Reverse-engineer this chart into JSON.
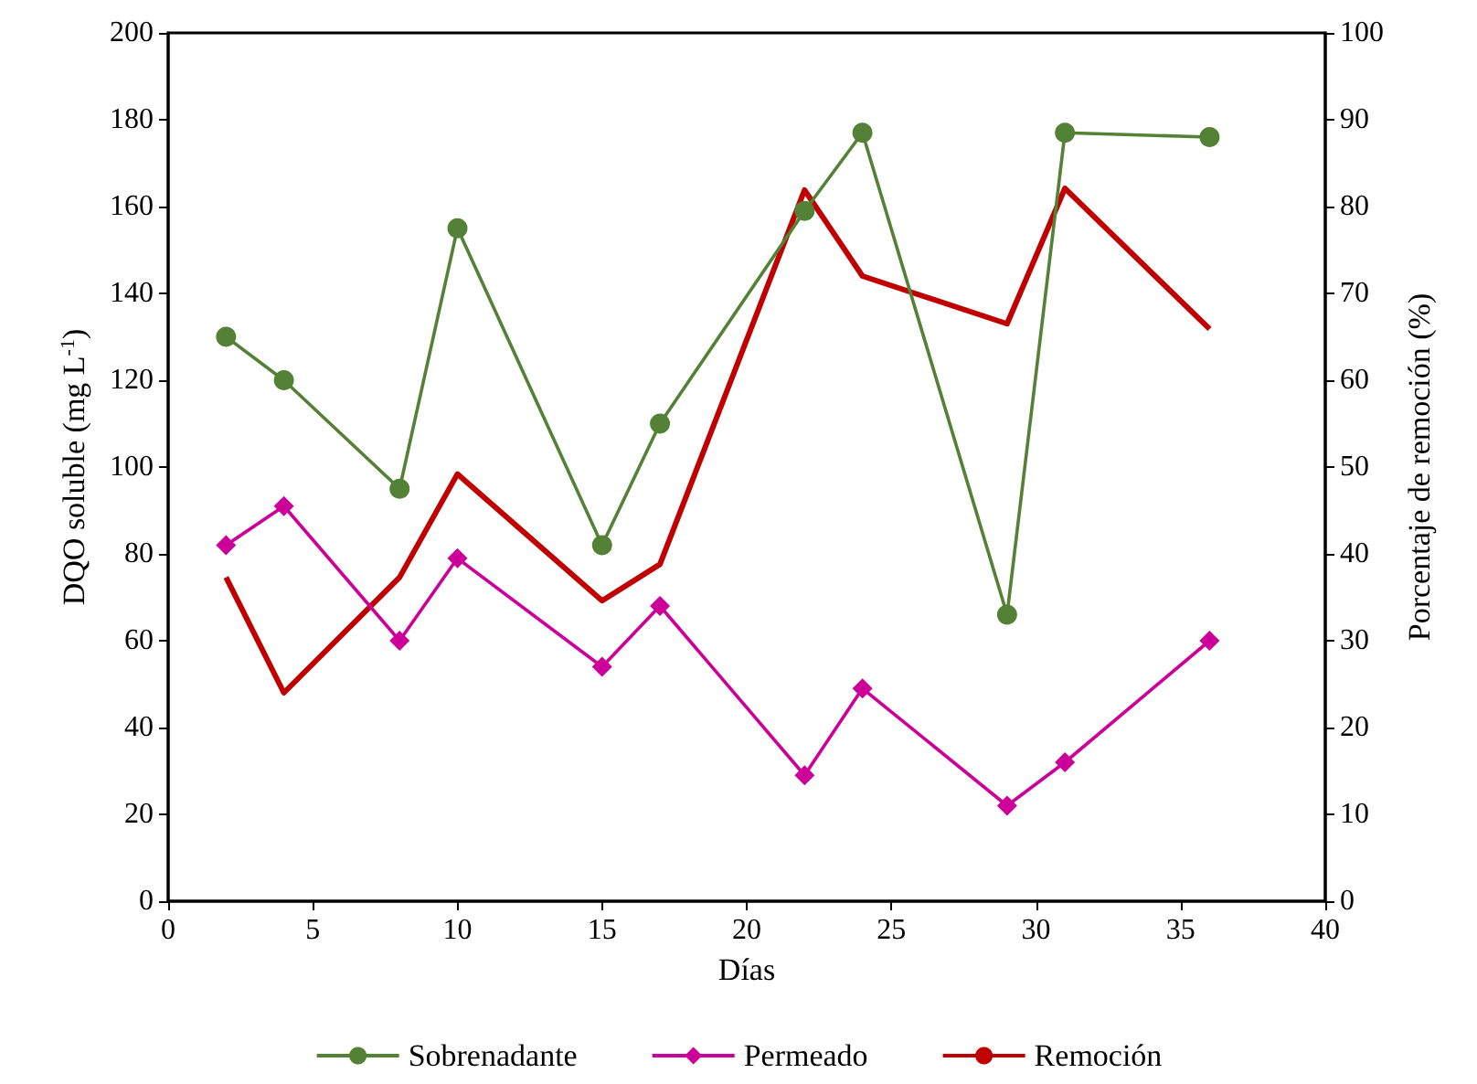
{
  "chart_data": {
    "type": "line",
    "xlabel": "Días",
    "ylabel": "DQO soluble (mg L$^{-1}$)",
    "y2label": "Porcentaje de remoción (%)",
    "x": [
      2,
      4,
      8,
      10,
      15,
      17,
      22,
      24,
      29,
      31,
      36
    ],
    "xlim": [
      0,
      40
    ],
    "xticks": [
      0,
      5,
      10,
      15,
      20,
      25,
      30,
      35,
      40
    ],
    "ylim": [
      0,
      200
    ],
    "yticks": [
      0,
      20,
      40,
      60,
      80,
      100,
      120,
      140,
      160,
      180,
      200
    ],
    "y2lim": [
      0,
      100
    ],
    "y2ticks": [
      0,
      10,
      20,
      30,
      40,
      50,
      60,
      70,
      80,
      90,
      100
    ],
    "grid": false,
    "legend": "bottom",
    "series": [
      {
        "name": "Sobrenadante",
        "color": "#538135",
        "marker": "circle",
        "values": [
          130,
          120,
          95,
          155,
          82,
          110,
          159,
          177,
          66,
          177,
          176
        ]
      },
      {
        "name": "Permeado",
        "color": "#cc0099",
        "marker": "diamond",
        "values": [
          82,
          91,
          60,
          79,
          54,
          68,
          29,
          49,
          22,
          32,
          60
        ]
      },
      {
        "name": "Remoción",
        "color": "#c00000",
        "marker": "none",
        "axis": "y2",
        "values": [
          37.3,
          24,
          37.3,
          49.2,
          34.6,
          38.8,
          81.9,
          72,
          66.5,
          82.1,
          65.9
        ]
      }
    ]
  }
}
